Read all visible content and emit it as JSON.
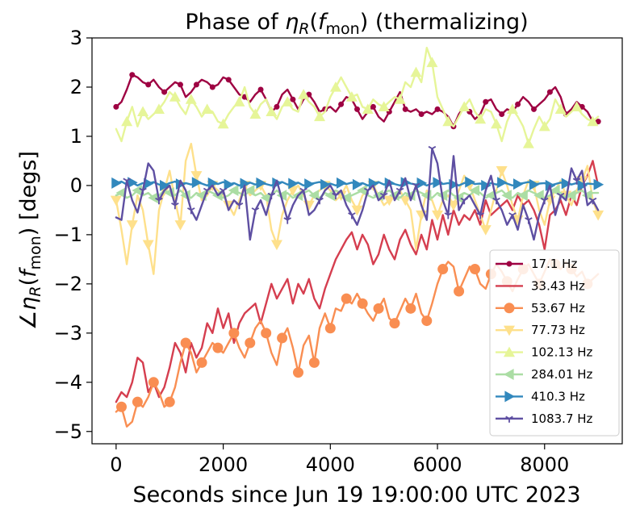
{
  "chart_data": {
    "type": "line",
    "title_prefix": "Phase of ",
    "title_eta": "η",
    "title_sub_r": "R",
    "title_f": "f",
    "title_sub_mon": "mon",
    "title_suffix": " (thermalizing)",
    "xlabel": "Seconds since Jun 19 19:00:00 UTC 2023",
    "ylabel_prefix": "∠",
    "ylabel_eta": "η",
    "ylabel_sub_r": "R",
    "ylabel_f": "f",
    "ylabel_sub_mon": "mon",
    "ylabel_suffix": " [degs]",
    "xlim": [
      -450,
      9450
    ],
    "ylim": [
      -5.25,
      3.0
    ],
    "xticks": [
      0,
      2000,
      4000,
      6000,
      8000
    ],
    "xtick_labels": [
      "0",
      "2000",
      "4000",
      "6000",
      "8000"
    ],
    "yticks": [
      -5,
      -4,
      -3,
      -2,
      -1,
      0,
      1,
      2,
      3
    ],
    "ytick_labels": [
      "−5",
      "−4",
      "−3",
      "−2",
      "−1",
      "0",
      "1",
      "2",
      "3"
    ],
    "grid": false,
    "legend_position": "lower-right",
    "x": [
      0,
      100,
      200,
      300,
      400,
      500,
      600,
      700,
      800,
      900,
      1000,
      1100,
      1200,
      1300,
      1400,
      1500,
      1600,
      1700,
      1800,
      1900,
      2000,
      2100,
      2200,
      2300,
      2400,
      2500,
      2600,
      2700,
      2800,
      2900,
      3000,
      3100,
      3200,
      3300,
      3400,
      3500,
      3600,
      3700,
      3800,
      3900,
      4000,
      4100,
      4200,
      4300,
      4400,
      4500,
      4600,
      4700,
      4800,
      4900,
      5000,
      5100,
      5200,
      5300,
      5400,
      5500,
      5600,
      5700,
      5800,
      5900,
      6000,
      6100,
      6200,
      6300,
      6400,
      6500,
      6600,
      6700,
      6800,
      6900,
      7000,
      7100,
      7200,
      7300,
      7400,
      7500,
      7600,
      7700,
      7800,
      7900,
      8000,
      8100,
      8200,
      8300,
      8400,
      8500,
      8600,
      8700,
      8800,
      8900,
      9000
    ],
    "series": [
      {
        "name": "17.1 Hz",
        "color": "#9e0142",
        "marker": "point",
        "values": [
          1.6,
          1.7,
          1.95,
          2.25,
          2.2,
          2.1,
          2.05,
          2.15,
          2.0,
          1.9,
          2.0,
          2.1,
          2.05,
          1.8,
          1.9,
          2.05,
          2.15,
          2.1,
          2.0,
          2.05,
          2.2,
          2.15,
          2.0,
          1.85,
          1.8,
          1.7,
          1.85,
          1.95,
          1.75,
          1.5,
          1.6,
          1.85,
          1.95,
          1.75,
          1.55,
          1.75,
          1.85,
          1.7,
          1.5,
          1.55,
          1.6,
          1.5,
          1.65,
          1.8,
          1.75,
          1.55,
          1.35,
          1.5,
          1.6,
          1.4,
          1.3,
          1.5,
          1.7,
          1.9,
          1.55,
          1.5,
          1.55,
          1.45,
          1.5,
          1.45,
          1.55,
          1.5,
          1.4,
          1.2,
          1.45,
          1.6,
          1.5,
          1.35,
          1.45,
          1.7,
          1.75,
          1.55,
          1.45,
          1.55,
          1.5,
          1.65,
          1.8,
          1.7,
          1.55,
          1.65,
          1.75,
          1.9,
          2.0,
          1.8,
          1.45,
          1.55,
          1.7,
          1.6,
          1.5,
          1.3,
          1.3
        ]
      },
      {
        "name": "33.43 Hz",
        "color": "#d53e4f",
        "marker": "none",
        "values": [
          -4.4,
          -4.2,
          -4.3,
          -4.0,
          -3.5,
          -3.6,
          -4.2,
          -4.0,
          -4.3,
          -4.1,
          -3.7,
          -3.2,
          -3.4,
          -3.8,
          -3.2,
          -3.5,
          -3.3,
          -2.8,
          -3.0,
          -2.5,
          -2.9,
          -2.6,
          -3.2,
          -2.8,
          -2.6,
          -2.5,
          -2.4,
          -2.8,
          -2.4,
          -2.0,
          -2.3,
          -2.1,
          -1.9,
          -2.4,
          -2.0,
          -2.2,
          -1.9,
          -2.3,
          -2.5,
          -2.1,
          -1.8,
          -1.5,
          -1.3,
          -1.1,
          -0.95,
          -1.3,
          -1.0,
          -1.2,
          -1.6,
          -1.4,
          -1.0,
          -1.3,
          -1.5,
          -1.1,
          -0.9,
          -1.2,
          -1.4,
          -1.0,
          -1.3,
          -0.7,
          -1.1,
          -0.6,
          -1.0,
          -0.5,
          -0.8,
          -0.6,
          -0.7,
          -0.5,
          -0.8,
          -0.3,
          -0.6,
          -0.5,
          -0.4,
          -0.3,
          -0.5,
          -0.2,
          -0.4,
          -0.3,
          -0.5,
          -0.8,
          -1.3,
          -0.6,
          -0.5,
          -0.3,
          -0.6,
          -0.2,
          -0.4,
          0.0,
          0.2,
          0.5,
          0.0
        ]
      },
      {
        "name": "53.67 Hz",
        "color": "#f98e52",
        "marker": "circle",
        "values": [
          -4.6,
          -4.5,
          -4.9,
          -4.8,
          -4.4,
          -4.5,
          -4.3,
          -4.0,
          -4.2,
          -4.5,
          -4.4,
          -4.1,
          -3.6,
          -3.2,
          -3.4,
          -3.8,
          -3.6,
          -3.4,
          -3.2,
          -3.3,
          -3.4,
          -3.2,
          -3.0,
          -3.3,
          -3.5,
          -3.2,
          -2.9,
          -2.75,
          -3.0,
          -3.4,
          -3.65,
          -3.1,
          -2.9,
          -3.3,
          -3.8,
          -3.25,
          -3.05,
          -3.6,
          -2.9,
          -2.6,
          -2.9,
          -2.5,
          -2.55,
          -2.3,
          -2.4,
          -2.2,
          -2.4,
          -2.6,
          -2.75,
          -2.5,
          -2.3,
          -2.7,
          -2.8,
          -2.55,
          -2.3,
          -2.5,
          -2.2,
          -2.6,
          -2.75,
          -2.4,
          -2.0,
          -1.7,
          -1.55,
          -1.65,
          -2.15,
          -1.9,
          -1.65,
          -1.7,
          -2.0,
          -2.1,
          -1.8,
          -1.6,
          -1.75,
          -1.95,
          -2.15,
          -1.9,
          -1.7,
          -1.6,
          -1.8,
          -2.0,
          -1.75,
          -1.5,
          -1.6,
          -1.7,
          -1.55,
          -1.7,
          -1.85,
          -1.75,
          -2.0,
          -1.9,
          -1.8
        ]
      },
      {
        "name": "77.73 Hz",
        "color": "#fee08b",
        "marker": "triangle-down",
        "values": [
          -0.3,
          -0.9,
          -1.6,
          -0.8,
          -0.2,
          -0.5,
          -1.2,
          -1.8,
          -0.5,
          -0.1,
          0.3,
          -0.3,
          -0.8,
          0.5,
          0.85,
          0.2,
          -0.3,
          -0.2,
          0.0,
          -0.1,
          -0.2,
          -0.4,
          -0.6,
          -0.3,
          0.0,
          -0.2,
          -0.1,
          0.0,
          -0.2,
          -0.9,
          -1.2,
          -0.6,
          -0.3,
          -0.1,
          0.0,
          -0.2,
          -0.4,
          -0.2,
          -0.1,
          0.0,
          -0.1,
          -0.3,
          -0.2,
          0.0,
          -0.3,
          -0.5,
          -0.2,
          -0.1,
          0.0,
          -0.2,
          -0.4,
          -0.3,
          -0.2,
          -0.1,
          -0.3,
          -0.5,
          -1.3,
          -0.6,
          -0.1,
          -0.3,
          -0.6,
          -0.3,
          -0.2,
          -0.4,
          -0.1,
          0.2,
          0.0,
          -0.3,
          -0.6,
          -0.9,
          -0.5,
          -0.1,
          0.3,
          0.0,
          -0.4,
          -0.7,
          -0.2,
          0.1,
          0.0,
          -0.5,
          -0.8,
          -0.3,
          -0.1,
          0.1,
          -0.2,
          -0.4,
          -0.1,
          0.1,
          0.4,
          -0.3,
          -0.6
        ]
      },
      {
        "name": "102.13 Hz",
        "color": "#e6f598",
        "marker": "triangle-up",
        "values": [
          1.15,
          0.9,
          1.3,
          1.6,
          1.2,
          1.5,
          1.35,
          1.45,
          1.55,
          1.7,
          1.9,
          1.8,
          1.6,
          1.45,
          1.75,
          1.6,
          1.4,
          1.55,
          1.5,
          1.3,
          1.25,
          1.45,
          1.6,
          1.7,
          2.0,
          1.6,
          1.45,
          1.65,
          1.75,
          1.5,
          1.35,
          1.6,
          1.7,
          1.55,
          1.5,
          1.85,
          1.7,
          1.6,
          1.4,
          1.5,
          1.8,
          2.0,
          2.2,
          2.0,
          1.8,
          1.85,
          1.6,
          1.55,
          1.75,
          1.65,
          1.6,
          1.7,
          1.8,
          1.75,
          2.1,
          2.0,
          2.3,
          2.1,
          2.8,
          2.5,
          1.8,
          1.55,
          1.3,
          1.2,
          1.4,
          1.6,
          1.75,
          1.5,
          1.35,
          1.55,
          1.5,
          1.25,
          0.9,
          1.3,
          1.55,
          1.4,
          1.2,
          0.85,
          1.15,
          1.4,
          1.2,
          1.35,
          1.75,
          1.55,
          1.4,
          1.5,
          1.6,
          1.45,
          1.35,
          1.3,
          1.4
        ]
      },
      {
        "name": "284.01 Hz",
        "color": "#abdda4",
        "marker": "triangle-left",
        "values": [
          -0.2,
          -0.15,
          -0.25,
          -0.2,
          -0.1,
          -0.2,
          -0.15,
          -0.25,
          -0.2,
          -0.1,
          -0.15,
          -0.2,
          -0.1,
          -0.2,
          -0.25,
          -0.15,
          -0.2,
          -0.1,
          -0.15,
          -0.2,
          -0.25,
          -0.2,
          -0.1,
          -0.15,
          -0.2,
          -0.1,
          -0.2,
          -0.15,
          -0.25,
          -0.2,
          -0.1,
          -0.2,
          -0.15,
          -0.25,
          -0.2,
          -0.15,
          -0.1,
          -0.2,
          -0.25,
          -0.15,
          -0.2,
          -0.1,
          -0.15,
          -0.25,
          -0.2,
          -0.15,
          -0.1,
          -0.2,
          -0.25,
          -0.2,
          -0.15,
          -0.1,
          -0.2,
          -0.25,
          -0.15,
          -0.2,
          -0.1,
          -0.15,
          -0.2,
          -0.25,
          -0.15,
          -0.2,
          -0.1,
          -0.2,
          -0.25,
          -0.15,
          -0.2,
          -0.1,
          -0.15,
          -0.25,
          -0.2,
          -0.15,
          -0.1,
          -0.2,
          -0.25,
          -0.15,
          -0.2,
          -0.1,
          -0.15,
          -0.2,
          -0.25,
          -0.2,
          -0.1,
          -0.15,
          -0.25,
          -0.2,
          -0.15,
          -0.1,
          -0.2,
          -0.15,
          -0.15
        ]
      },
      {
        "name": "410.3 Hz",
        "color": "#3288bd",
        "marker": "triangle-right",
        "values": [
          0.05,
          0.08,
          0.02,
          0.06,
          0.0,
          0.05,
          0.04,
          0.07,
          0.02,
          0.0,
          0.05,
          0.08,
          0.03,
          0.05,
          0.02,
          0.06,
          0.04,
          0.0,
          0.05,
          0.03,
          0.07,
          0.02,
          0.05,
          0.0,
          0.04,
          0.06,
          0.02,
          0.05,
          0.03,
          0.0,
          0.05,
          0.07,
          0.02,
          0.04,
          0.06,
          0.0,
          0.03,
          0.05,
          0.07,
          0.02,
          0.04,
          0.0,
          0.05,
          0.03,
          0.06,
          0.02,
          0.05,
          0.0,
          0.04,
          0.07,
          0.02,
          0.05,
          0.03,
          0.0,
          0.06,
          0.04,
          0.02,
          0.05,
          0.0,
          0.04,
          0.06,
          0.03,
          0.05,
          0.02,
          0.0,
          0.05,
          0.07,
          0.03,
          0.04,
          0.0,
          0.05,
          0.02,
          0.06,
          0.04,
          0.0,
          0.03,
          0.05,
          0.07,
          0.02,
          0.04,
          0.05,
          0.0,
          0.03,
          0.06,
          0.04,
          0.02,
          0.05,
          0.0,
          0.04,
          0.03,
          0.02
        ]
      },
      {
        "name": "1083.7 Hz",
        "color": "#5e4fa2",
        "marker": "tri-down",
        "values": [
          -0.65,
          -0.7,
          0.1,
          -0.3,
          -0.55,
          -0.1,
          0.45,
          0.3,
          -0.3,
          -0.1,
          0.0,
          -0.4,
          0.1,
          -0.1,
          -0.5,
          -0.7,
          -0.4,
          -0.1,
          0.0,
          -0.2,
          -0.1,
          -0.5,
          -0.3,
          -0.4,
          0.0,
          -1.1,
          -0.5,
          -0.3,
          -0.6,
          -0.2,
          0.1,
          -0.3,
          -0.7,
          -0.4,
          -0.2,
          -0.1,
          -0.6,
          -0.5,
          -0.3,
          -0.1,
          0.0,
          -0.2,
          -0.1,
          -0.4,
          -0.6,
          -0.8,
          -0.5,
          -0.1,
          0.0,
          -0.3,
          -0.2,
          0.1,
          -0.3,
          -0.1,
          0.15,
          -0.3,
          0.0,
          -0.4,
          -0.7,
          0.75,
          0.45,
          -0.3,
          -0.6,
          0.6,
          -0.5,
          -0.3,
          -0.2,
          -0.4,
          -0.6,
          -0.1,
          0.2,
          -0.3,
          -0.5,
          -0.8,
          -0.6,
          -0.9,
          -0.4,
          -0.7,
          -1.1,
          -0.6,
          -0.3,
          0.0,
          -0.6,
          -0.2,
          -0.3,
          0.35,
          0.1,
          0.3,
          -0.4,
          -0.3,
          -0.5
        ]
      }
    ]
  }
}
